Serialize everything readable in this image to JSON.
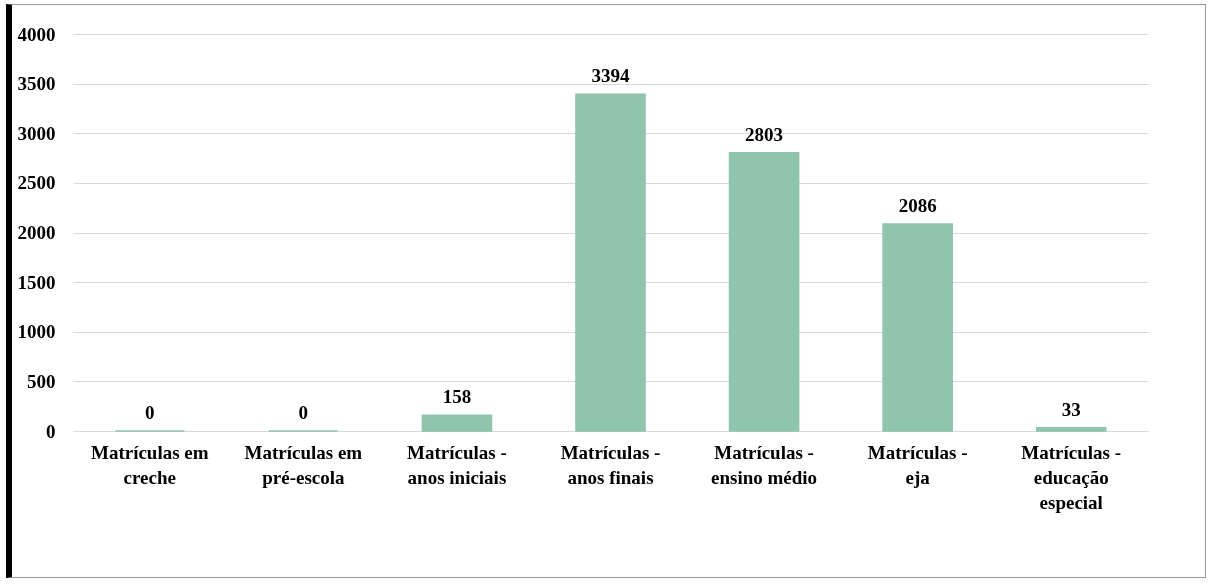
{
  "chart_data": {
    "type": "bar",
    "categories": [
      "Matrículas em creche",
      "Matrículas em pré-escola",
      "Matrículas - anos iniciais",
      "Matrículas - anos finais",
      "Matrículas - ensino médio",
      "Matrículas - eja",
      "Matrículas - educação especial"
    ],
    "values": [
      0,
      0,
      158,
      3394,
      2803,
      2086,
      33
    ],
    "color": "#8fc4ad",
    "ylim": [
      0,
      4000
    ],
    "yticks": [
      0,
      500,
      1000,
      1500,
      2000,
      2500,
      3000,
      3500,
      4000
    ],
    "grid": "y",
    "data_labels": true
  }
}
